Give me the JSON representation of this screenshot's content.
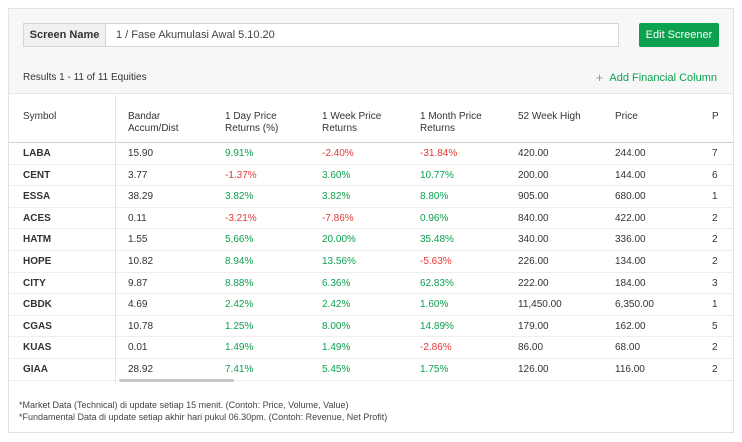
{
  "screen_name": {
    "label": "Screen Name",
    "value": "1 / Fase Akumulasi Awal 5.10.20"
  },
  "edit_button": "Edit Screener",
  "results_text": "Results 1 - 11 of 11 Equities",
  "add_column": {
    "label": "Add Financial Column",
    "icon": "plus-icon"
  },
  "columns": [
    "Symbol",
    "Bandar Accum/Dist",
    "1 Day Price Returns (%)",
    "1 Week Price Returns",
    "1 Month Price Returns",
    "52 Week High",
    "Price",
    "P"
  ],
  "column_lines": [
    [
      "Symbol"
    ],
    [
      "Bandar",
      "Accum/Dist"
    ],
    [
      "1 Day Price",
      "Returns (%)"
    ],
    [
      "1 Week Price",
      "Returns"
    ],
    [
      "1 Month Price",
      "Returns"
    ],
    [
      "52 Week High"
    ],
    [
      "Price"
    ],
    [
      "P"
    ]
  ],
  "rows": [
    [
      "LABA",
      "15.90",
      "9.91%",
      "-2.40%",
      "-31.84%",
      "420.00",
      "244.00",
      "7"
    ],
    [
      "CENT",
      "3.77",
      "-1.37%",
      "3.60%",
      "10.77%",
      "200.00",
      "144.00",
      "6"
    ],
    [
      "ESSA",
      "38.29",
      "3.82%",
      "3.82%",
      "8.80%",
      "905.00",
      "680.00",
      "1"
    ],
    [
      "ACES",
      "0.11",
      "-3.21%",
      "-7.86%",
      "0.96%",
      "840.00",
      "422.00",
      "2"
    ],
    [
      "HATM",
      "1.55",
      "5.66%",
      "20.00%",
      "35.48%",
      "340.00",
      "336.00",
      "2"
    ],
    [
      "HOPE",
      "10.82",
      "8.94%",
      "13.56%",
      "-5.63%",
      "226.00",
      "134.00",
      "2"
    ],
    [
      "CITY",
      "9.87",
      "8.88%",
      "6.36%",
      "62.83%",
      "222.00",
      "184.00",
      "3"
    ],
    [
      "CBDK",
      "4.69",
      "2.42%",
      "2.42%",
      "1.60%",
      "11,450.00",
      "6,350.00",
      "1"
    ],
    [
      "CGAS",
      "10.78",
      "1.25%",
      "8.00%",
      "14.89%",
      "179.00",
      "162.00",
      "5"
    ],
    [
      "KUAS",
      "0.01",
      "1.49%",
      "1.49%",
      "-2.86%",
      "86.00",
      "68.00",
      "2"
    ],
    [
      "GIAA",
      "28.92",
      "7.41%",
      "5.45%",
      "1.75%",
      "126.00",
      "116.00",
      "2"
    ]
  ],
  "notes": [
    "*Market Data (Technical) di update setiap 15 menit. (Contoh: Price, Volume, Value)",
    "*Fundamental Data di update setiap akhir hari pukul 06.30pm. (Contoh: Revenue, Net Profit)"
  ],
  "colors": {
    "accent": "#0ca14f",
    "negative": "#e53935"
  }
}
